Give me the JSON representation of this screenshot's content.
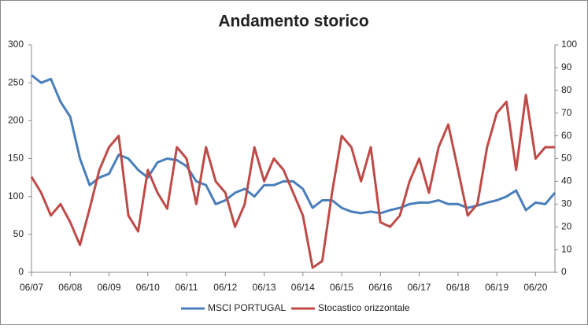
{
  "chart_data": {
    "type": "line",
    "title": "Andamento storico",
    "categories": [
      "06/07",
      null,
      null,
      null,
      "06/08",
      null,
      null,
      null,
      "06/09",
      null,
      null,
      null,
      "06/10",
      null,
      null,
      null,
      "06/11",
      null,
      null,
      null,
      "06/12",
      null,
      null,
      null,
      "06/13",
      null,
      null,
      null,
      "06/14",
      null,
      null,
      null,
      "06/15",
      null,
      null,
      null,
      "06/16",
      null,
      null,
      null,
      "06/17",
      null,
      null,
      null,
      "06/18",
      null,
      null,
      null,
      "06/19",
      null,
      null,
      null,
      "06/20",
      null,
      null
    ],
    "series": [
      {
        "name": "MSCI PORTUGAL",
        "color": "#4a7ebb",
        "values": [
          260,
          250,
          255,
          225,
          205,
          150,
          115,
          125,
          130,
          155,
          150,
          135,
          125,
          145,
          150,
          148,
          140,
          120,
          115,
          90,
          95,
          105,
          110,
          100,
          115,
          115,
          120,
          120,
          110,
          85,
          95,
          95,
          85,
          80,
          78,
          80,
          78,
          82,
          85,
          90,
          92,
          92,
          95,
          90,
          90,
          85,
          88,
          92,
          95,
          100,
          108,
          82,
          92,
          90,
          105
        ]
      },
      {
        "name": "Stocastico orizzontale",
        "color": "#be4b48",
        "axis": "y2",
        "values": [
          42,
          35,
          25,
          30,
          22,
          12,
          28,
          45,
          55,
          60,
          25,
          18,
          45,
          35,
          28,
          55,
          50,
          30,
          55,
          40,
          35,
          20,
          30,
          55,
          40,
          50,
          45,
          35,
          25,
          2,
          5,
          35,
          60,
          55,
          40,
          55,
          22,
          20,
          25,
          40,
          50,
          35,
          55,
          65,
          45,
          25,
          30,
          55,
          70,
          75,
          45,
          78,
          50,
          55,
          55
        ]
      }
    ],
    "ylim": [
      0,
      300
    ],
    "yticks": [
      0,
      50,
      100,
      150,
      200,
      250,
      300
    ],
    "y2lim": [
      0,
      100
    ],
    "y2ticks": [
      0,
      10,
      20,
      30,
      40,
      50,
      60,
      70,
      80,
      90,
      100
    ],
    "legend": "bottom"
  }
}
